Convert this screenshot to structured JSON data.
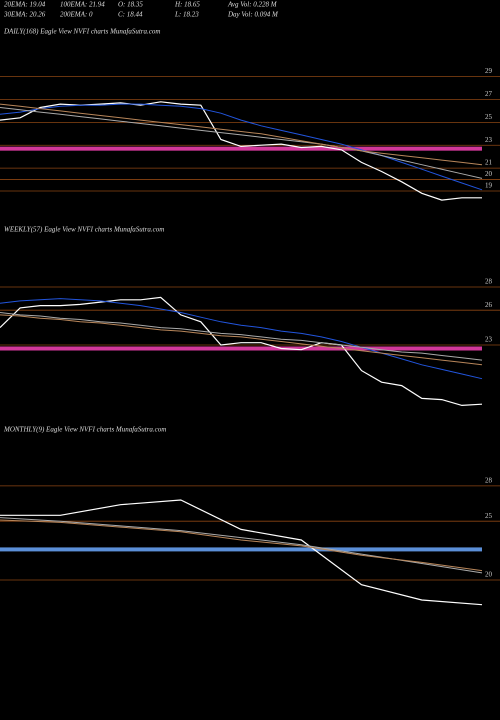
{
  "header": {
    "rows": [
      [
        "20EMA: 19.04",
        "100EMA: 21.94",
        "O: 18.35",
        "H: 18.65",
        "Avg Vol: 0.228  M"
      ],
      [
        "30EMA: 20.26",
        "200EMA: 0",
        "C: 18.44",
        "L: 18.23",
        "Day Vol: 0.094  M"
      ]
    ]
  },
  "chart_data": [
    {
      "type": "line",
      "title": "DAILY(168) Eagle  View  NVFI charts MunafaSutra.com",
      "ylim": [
        16.9,
        32.2
      ],
      "yticks": [
        29,
        27,
        25,
        23,
        21,
        20,
        19
      ],
      "grid": true,
      "grid_color": "#8b4513",
      "reference_line": {
        "value": 22.7,
        "color": "#d2389a"
      },
      "series": [
        {
          "color": "#ffffff",
          "values": [
            25.2,
            25.4,
            26.3,
            26.6,
            26.5,
            26.6,
            26.7,
            26.5,
            26.8,
            26.6,
            26.5,
            23.5,
            22.9,
            23.0,
            23.1,
            22.8,
            22.9,
            22.6,
            21.5,
            20.7,
            19.8,
            18.8,
            18.2,
            18.4,
            18.4
          ]
        },
        {
          "color": "#2255dd",
          "values": [
            25.7,
            25.9,
            26.2,
            26.4,
            26.5,
            26.5,
            26.6,
            26.6,
            26.5,
            26.4,
            26.2,
            25.8,
            25.2,
            24.7,
            24.3,
            23.9,
            23.5,
            23.1,
            22.6,
            22.1,
            21.5,
            20.9,
            20.3,
            19.7,
            19.1
          ]
        },
        {
          "color": "#aaaaaa",
          "values": [
            26.3,
            26.1,
            25.9,
            25.7,
            25.5,
            25.3,
            25.1,
            24.9,
            24.7,
            24.5,
            24.3,
            24.1,
            23.9,
            23.7,
            23.5,
            23.3,
            23.1,
            22.8,
            22.5,
            22.1,
            21.7,
            21.3,
            20.9,
            20.5,
            20.1
          ]
        },
        {
          "color": "#b8865a",
          "values": [
            26.6,
            26.4,
            26.2,
            26.0,
            25.8,
            25.6,
            25.4,
            25.2,
            25.0,
            24.8,
            24.6,
            24.4,
            24.2,
            24.0,
            23.7,
            23.4,
            23.1,
            22.8,
            22.5,
            22.3,
            22.1,
            21.9,
            21.7,
            21.5,
            21.3
          ]
        }
      ]
    },
    {
      "type": "line",
      "title": "WEEKLY(57) Eagle  View  NVFI charts MunafaSutra.com",
      "ylim": [
        16.97,
        32.05
      ],
      "yticks": [
        28,
        26,
        23
      ],
      "grid": true,
      "grid_color": "#8b4513",
      "reference_line": {
        "value": 22.7,
        "color": "#d2389a"
      },
      "series": [
        {
          "color": "#ffffff",
          "values": [
            24.5,
            26.2,
            26.4,
            26.4,
            26.5,
            26.7,
            26.9,
            26.9,
            27.1,
            25.6,
            25.0,
            23.0,
            23.2,
            23.2,
            22.7,
            22.6,
            23.2,
            23.0,
            20.8,
            19.8,
            19.5,
            18.4,
            18.3,
            17.8,
            17.9
          ]
        },
        {
          "color": "#2255dd",
          "values": [
            26.6,
            26.8,
            26.9,
            27.0,
            26.9,
            26.8,
            26.6,
            26.4,
            26.1,
            25.8,
            25.4,
            25.0,
            24.7,
            24.5,
            24.2,
            24.0,
            23.7,
            23.3,
            22.8,
            22.3,
            21.8,
            21.3,
            20.9,
            20.5,
            20.1
          ]
        },
        {
          "color": "#aaaaaa",
          "values": [
            25.8,
            25.6,
            25.5,
            25.3,
            25.2,
            25.0,
            24.9,
            24.7,
            24.5,
            24.4,
            24.2,
            24.0,
            23.9,
            23.7,
            23.5,
            23.4,
            23.2,
            23.0,
            22.8,
            22.6,
            22.4,
            22.3,
            22.1,
            21.9,
            21.7
          ]
        },
        {
          "color": "#b8865a",
          "values": [
            25.6,
            25.5,
            25.3,
            25.2,
            25.0,
            24.9,
            24.7,
            24.5,
            24.3,
            24.2,
            24.0,
            23.8,
            23.7,
            23.5,
            23.3,
            23.1,
            22.9,
            22.7,
            22.5,
            22.3,
            22.1,
            21.9,
            21.7,
            21.5,
            21.3
          ]
        }
      ]
    },
    {
      "type": "line",
      "title": "MONTHLY(9) Eagle  View  NVFI charts MunafaSutra.com",
      "ylim": [
        17.45,
        31.9
      ],
      "yticks": [
        28,
        25,
        20
      ],
      "grid": true,
      "grid_color": "#8b4513",
      "reference_line": {
        "value": 22.6,
        "color": "#5b8fd8"
      },
      "series": [
        {
          "color": "#ffffff",
          "values": [
            25.5,
            25.5,
            26.4,
            26.8,
            24.3,
            23.4,
            19.6,
            18.3,
            17.9
          ]
        },
        {
          "color": "#aaaaaa",
          "values": [
            25.3,
            25.0,
            24.6,
            24.2,
            23.6,
            23.0,
            22.2,
            21.4,
            20.6
          ]
        },
        {
          "color": "#b8865a",
          "values": [
            25.1,
            24.9,
            24.5,
            24.1,
            23.4,
            22.9,
            22.1,
            21.5,
            20.8
          ]
        }
      ]
    }
  ]
}
